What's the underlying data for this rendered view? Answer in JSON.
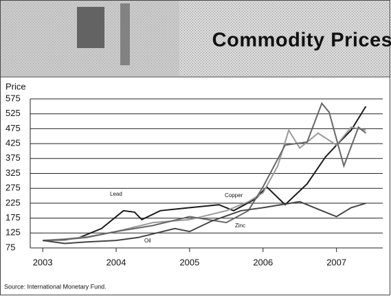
{
  "header": {
    "title": "Commodity Prices"
  },
  "chart_data": {
    "type": "line",
    "ylabel": "Price",
    "xlim": [
      2002.83,
      2007.63
    ],
    "xticks": [
      2003,
      2004,
      2005,
      2006,
      2007
    ],
    "ylim": [
      75,
      575
    ],
    "yticks": [
      75,
      125,
      175,
      225,
      275,
      325,
      375,
      425,
      475,
      525,
      575
    ],
    "grid": true,
    "series": [
      {
        "name": "Lead",
        "color": "#1a1a1a",
        "x": [
          2003,
          2003.3,
          2003.5,
          2003.8,
          2004.1,
          2004.25,
          2004.35,
          2004.6,
          2005,
          2005.4,
          2005.6,
          2005.9,
          2006.05,
          2006.3,
          2006.6,
          2006.85,
          2007,
          2007.2,
          2007.4
        ],
        "values": [
          100,
          102,
          110,
          140,
          200,
          195,
          170,
          200,
          210,
          220,
          200,
          240,
          280,
          220,
          290,
          380,
          420,
          470,
          550
        ]
      },
      {
        "name": "Copper",
        "color": "#9a9a9a",
        "x": [
          2003,
          2003.3,
          2003.6,
          2004,
          2004.5,
          2005,
          2005.5,
          2005.8,
          2006,
          2006.2,
          2006.35,
          2006.5,
          2006.75,
          2007,
          2007.2,
          2007.4
        ],
        "values": [
          100,
          105,
          112,
          130,
          160,
          170,
          200,
          230,
          260,
          350,
          470,
          410,
          460,
          420,
          480,
          470
        ]
      },
      {
        "name": "Zinc",
        "color": "#666666",
        "x": [
          2003,
          2003.3,
          2003.6,
          2004,
          2004.5,
          2005,
          2005.5,
          2005.8,
          2006,
          2006.3,
          2006.6,
          2006.8,
          2006.9,
          2007.1,
          2007.3,
          2007.4
        ],
        "values": [
          100,
          103,
          110,
          130,
          150,
          180,
          160,
          200,
          280,
          420,
          430,
          560,
          530,
          350,
          480,
          460
        ]
      },
      {
        "name": "Oil",
        "color": "#444444",
        "x": [
          2003,
          2003.3,
          2003.6,
          2004,
          2004.3,
          2004.8,
          2005,
          2005.3,
          2005.7,
          2006,
          2006.5,
          2006.8,
          2007,
          2007.2,
          2007.4
        ],
        "values": [
          100,
          90,
          95,
          100,
          110,
          140,
          130,
          165,
          200,
          210,
          230,
          200,
          180,
          210,
          225
        ]
      }
    ]
  },
  "source": "Source: International Monetary Fund."
}
